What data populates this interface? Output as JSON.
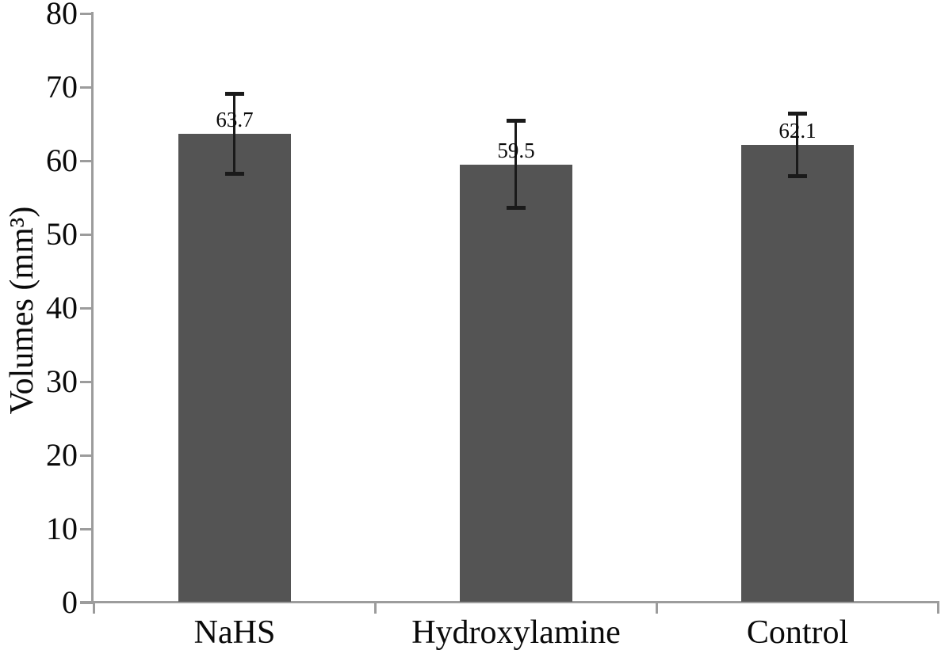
{
  "chart_data": {
    "type": "bar",
    "title": "",
    "xlabel": "",
    "ylabel": "Volumes (mm³)",
    "categories": [
      "NaHS",
      "Hydroxylamine",
      "Control"
    ],
    "values": [
      63.7,
      59.5,
      62.1
    ],
    "value_labels": [
      "63.7",
      "59.5",
      "62.1"
    ],
    "error_upper": [
      5.4,
      6.0,
      4.4
    ],
    "error_lower": [
      5.5,
      6.0,
      4.2
    ],
    "ylim": [
      0,
      80
    ],
    "yticks": [
      0,
      10,
      20,
      30,
      40,
      50,
      60,
      70,
      80
    ],
    "grid": false,
    "legend": null,
    "colors": {
      "bar": "#545454",
      "axis": "#9c9c9c",
      "error_bar": "#1a1a1a",
      "text": "#0a0a0a"
    }
  }
}
